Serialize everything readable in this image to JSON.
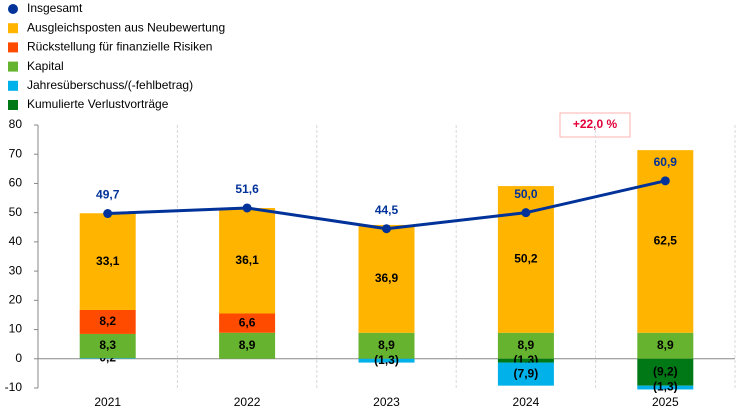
{
  "chart_data": {
    "type": "bar",
    "categories": [
      "2021",
      "2022",
      "2023",
      "2024",
      "2025"
    ],
    "ylim": [
      -10,
      80
    ],
    "yticks": [
      -10,
      0,
      10,
      20,
      30,
      40,
      50,
      60,
      70,
      80
    ],
    "grid": true,
    "series": [
      {
        "name": "Insgesamt",
        "type": "line",
        "color": "#003299",
        "values": [
          49.7,
          51.6,
          44.5,
          50.0,
          60.9
        ],
        "value_labels": [
          "49,7",
          "51,6",
          "44,5",
          "50,0",
          "60,9"
        ]
      },
      {
        "name": "Ausgleichsposten aus Neubewertung",
        "color": "#ffb400",
        "values": [
          33.1,
          36.1,
          36.9,
          50.2,
          62.5
        ],
        "value_labels": [
          "33,1",
          "36,1",
          "36,9",
          "50,2",
          "62,5"
        ]
      },
      {
        "name": "Rückstellung für finanzielle Risiken",
        "color": "#ff4b00",
        "values": [
          8.2,
          6.6,
          null,
          null,
          null
        ],
        "value_labels": [
          "8,2",
          "6,6",
          null,
          null,
          null
        ]
      },
      {
        "name": "Kapital",
        "color": "#65b32e",
        "values": [
          8.3,
          8.9,
          8.9,
          8.9,
          8.9
        ],
        "value_labels": [
          "8,3",
          "8,9",
          "8,9",
          "8,9",
          "8,9"
        ]
      },
      {
        "name": "Jahresüberschuss/(-fehlbetrag)",
        "color": "#00b1ea",
        "values": [
          0.2,
          null,
          -1.3,
          -7.9,
          -1.3
        ],
        "value_labels": [
          "0,2",
          null,
          "(1,3)",
          "(7,9)",
          "(1,3)"
        ]
      },
      {
        "name": "Kumulierte Verlustvorträge",
        "color": "#007816",
        "values": [
          null,
          null,
          null,
          -1.3,
          -9.2
        ],
        "value_labels": [
          null,
          null,
          null,
          "(1,3)",
          "(9,2)"
        ]
      }
    ],
    "annotation": "+22,0 %"
  }
}
